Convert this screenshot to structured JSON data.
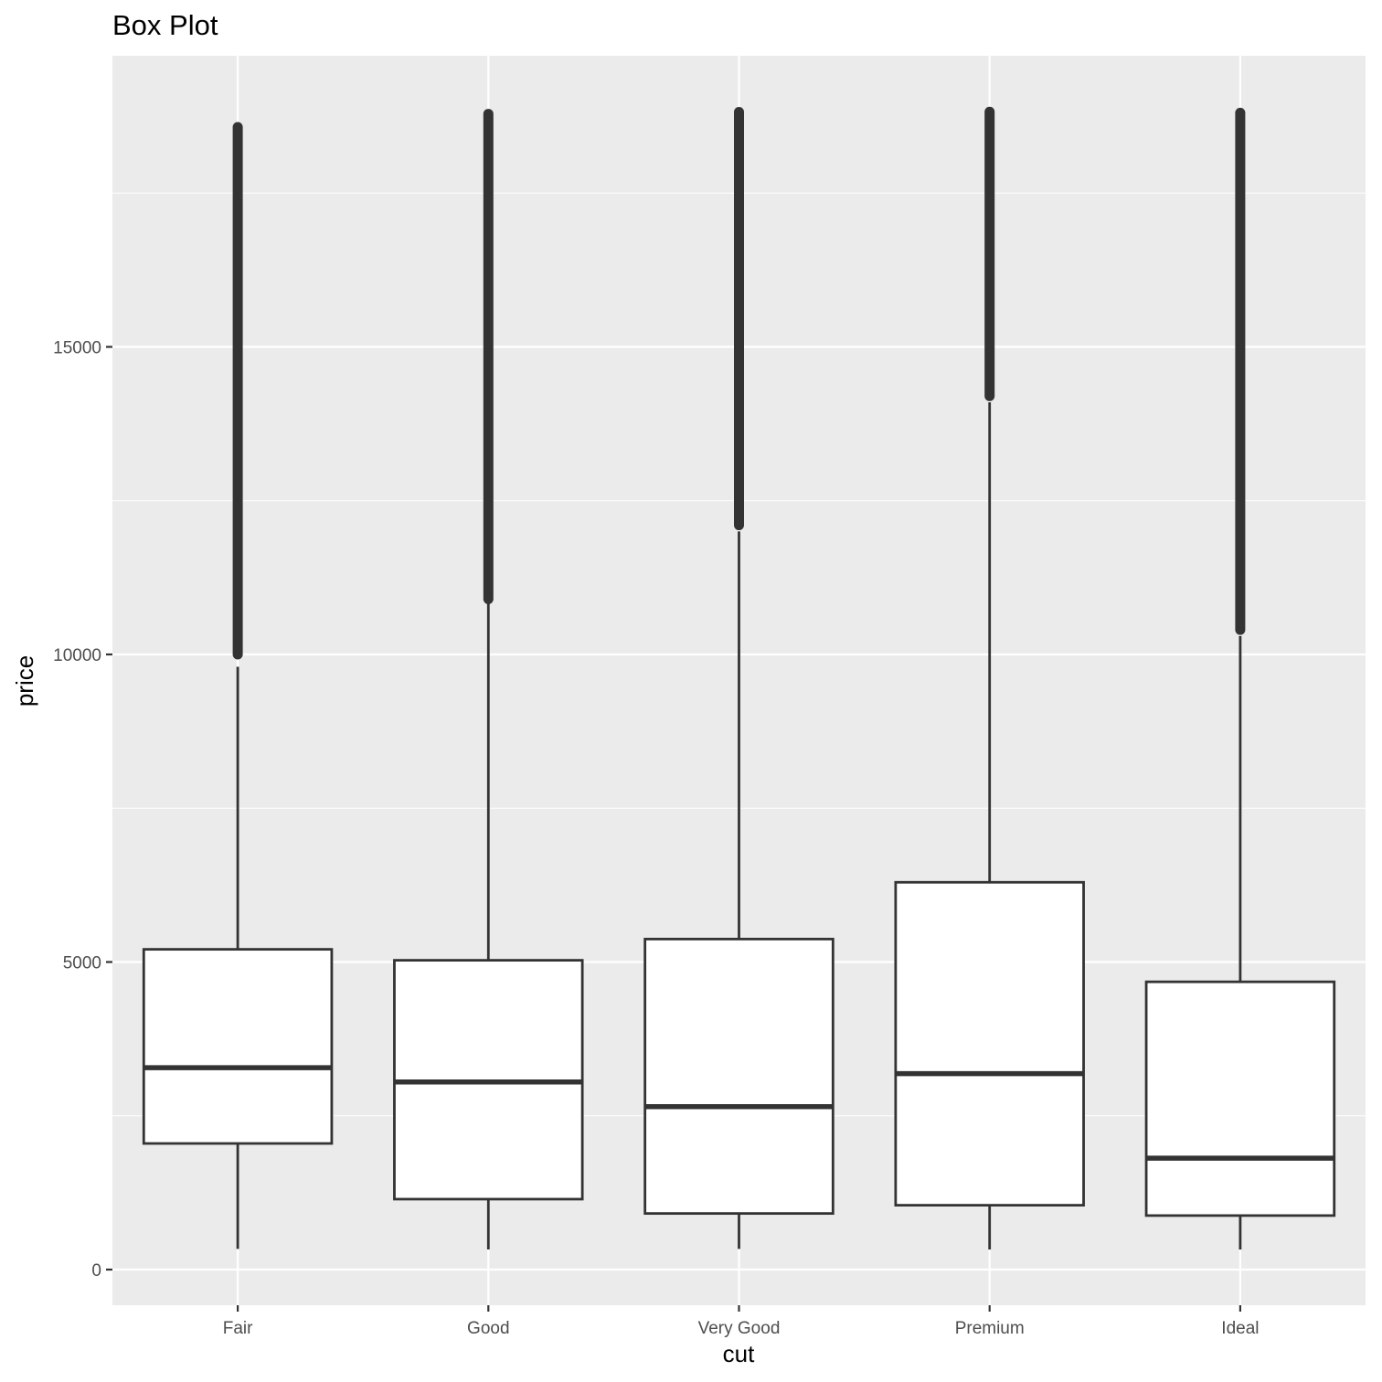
{
  "chart_data": {
    "type": "box",
    "title": "Box Plot",
    "xlabel": "cut",
    "ylabel": "price",
    "ylim": [
      -1200,
      19200
    ],
    "yticks": [
      0,
      5000,
      10000,
      15000
    ],
    "ytick_labels": [
      "0",
      "5000",
      "10000",
      "15000"
    ],
    "grid": true,
    "legend": "none",
    "categories": [
      "Fair",
      "Good",
      "Very Good",
      "Premium",
      "Ideal"
    ],
    "boxes": [
      {
        "category": "Fair",
        "whisker_low": 337,
        "q1": 2050,
        "median": 3282,
        "q3": 5206,
        "whisker_high": 9800,
        "outlier_range": [
          10000,
          18574
        ]
      },
      {
        "category": "Good",
        "whisker_low": 327,
        "q1": 1145,
        "median": 3050,
        "q3": 5028,
        "whisker_high": 10850,
        "outlier_range": [
          10900,
          18788
        ]
      },
      {
        "category": "Very Good",
        "whisker_low": 336,
        "q1": 912,
        "median": 2648,
        "q3": 5373,
        "whisker_high": 12000,
        "outlier_range": [
          12100,
          18818
        ]
      },
      {
        "category": "Premium",
        "whisker_low": 326,
        "q1": 1046,
        "median": 3185,
        "q3": 6296,
        "whisker_high": 14100,
        "outlier_range": [
          14200,
          18823
        ]
      },
      {
        "category": "Ideal",
        "whisker_low": 326,
        "q1": 878,
        "median": 1810,
        "q3": 4678,
        "whisker_high": 10300,
        "outlier_range": [
          10400,
          18806
        ]
      }
    ],
    "colors": {
      "panel": "#ebebeb",
      "grid_major": "#ffffff",
      "box_fill": "#ffffff",
      "box_line": "#333333",
      "tick_text": "#4d4d4d"
    }
  }
}
